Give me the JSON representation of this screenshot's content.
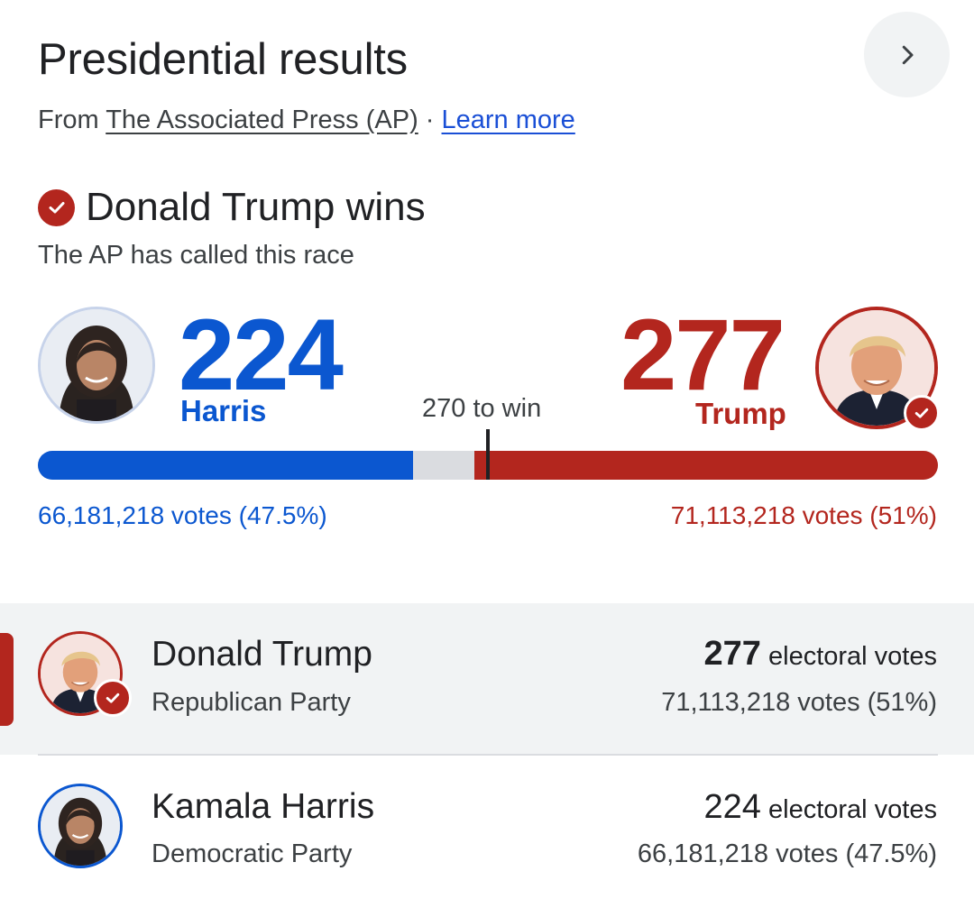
{
  "header": {
    "title": "Presidential results",
    "source_prefix": "From ",
    "source_name": "The Associated Press (AP)",
    "separator": " · ",
    "learn_more": "Learn more"
  },
  "result": {
    "winner_text": "Donald Trump wins",
    "status": "The AP has called this race",
    "threshold_label": "270 to win"
  },
  "harris": {
    "electoral": "224",
    "label": "Harris",
    "votes": "66,181,218 votes (47.5%)"
  },
  "trump": {
    "electoral": "277",
    "label": "Trump",
    "votes": "71,113,218 votes (51%)"
  },
  "bar": {
    "total_electoral": 538,
    "harris_electoral": 224,
    "trump_electoral": 277,
    "threshold": 270
  },
  "rows": [
    {
      "name": "Donald Trump",
      "party": "Republican Party",
      "electoral": "277",
      "electoral_suffix": "electoral votes",
      "votes": "71,113,218 votes (51%)"
    },
    {
      "name": "Kamala Harris",
      "party": "Democratic Party",
      "electoral": "224",
      "electoral_suffix": "electoral votes",
      "votes": "66,181,218 votes (47.5%)"
    }
  ],
  "colors": {
    "democrat": "#0b57d0",
    "republican": "#b3261e",
    "undecided": "#dadce0"
  },
  "icons": {
    "next": "chevron-right-icon",
    "called": "check-circle-icon"
  }
}
